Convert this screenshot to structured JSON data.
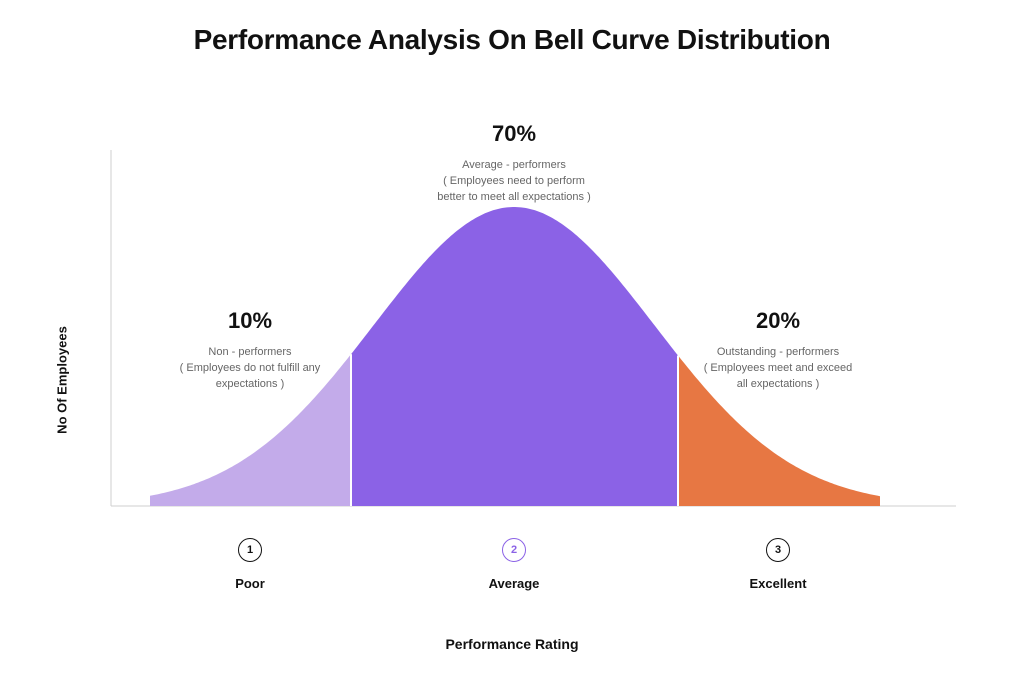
{
  "chart_data": {
    "type": "area",
    "title": "Performance Analysis On Bell Curve Distribution",
    "xlabel": "Performance Rating",
    "ylabel": "No Of Employees",
    "segments": [
      {
        "key": "poor",
        "percent": 10,
        "percent_label": "10%",
        "color": "#C3ABEA",
        "desc_lines": [
          "Non - performers",
          "( Employees do not fulfill any",
          "expectations )"
        ]
      },
      {
        "key": "average",
        "percent": 70,
        "percent_label": "70%",
        "color": "#8B62E6",
        "desc_lines": [
          "Average - performers",
          "( Employees need to perform",
          "better to meet all expectations )"
        ]
      },
      {
        "key": "excellent",
        "percent": 20,
        "percent_label": "20%",
        "color": "#E77743",
        "desc_lines": [
          "Outstanding - performers",
          "( Employees meet and exceed",
          "all expectations )"
        ]
      }
    ],
    "ratings": [
      {
        "number": "1",
        "label": "Poor",
        "color": "#111111"
      },
      {
        "number": "2",
        "label": "Average",
        "color": "#8B62E6"
      },
      {
        "number": "3",
        "label": "Excellent",
        "color": "#111111"
      }
    ],
    "grid": false,
    "legend": "none"
  }
}
